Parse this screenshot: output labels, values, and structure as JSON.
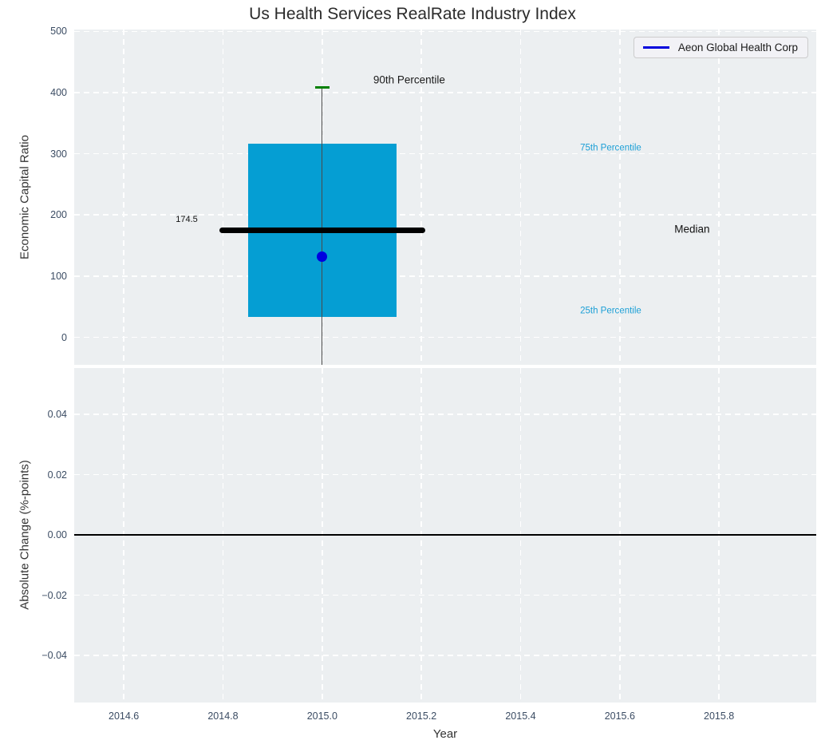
{
  "chart_data": {
    "type": "boxplot",
    "title": "Us Health Services RealRate Industry Index",
    "legend": {
      "label": "Aeon Global Health Corp",
      "line_color": "#0000dd",
      "position": "upper right"
    },
    "x_axis": {
      "label": "Year",
      "xlim": [
        2014.5,
        2015.996
      ],
      "tick_values": [
        2014.6,
        2014.8,
        2015.0,
        2015.2,
        2015.4,
        2015.6,
        2015.8
      ],
      "tick_labels": [
        "2014.6",
        "2014.8",
        "2015.0",
        "2015.2",
        "2015.4",
        "2015.6",
        "2015.8"
      ]
    },
    "top_axes": {
      "ylabel": "Economic Capital Ratio",
      "ylim": [
        -45,
        503
      ],
      "tick_values": [
        0,
        100,
        200,
        300,
        400,
        500
      ],
      "tick_labels": [
        "0",
        "100",
        "200",
        "300",
        "400",
        "500"
      ],
      "grid": true,
      "boxplot": {
        "x": 2015.0,
        "box_halfwidth": 0.15,
        "q1": 33,
        "median": 174.5,
        "median_label": "174.5",
        "median_line_halfwidth": 0.207,
        "q3": 317,
        "p90": 409,
        "cap_halfwidth": 0.015,
        "whisker_low": -60
      },
      "company_point": {
        "x": 2015.0,
        "y": 132
      },
      "annotations": [
        {
          "text": "90th Percentile",
          "x": 2015.103,
          "y": 420,
          "color": "#1a1a1a",
          "size": 13.5,
          "align": "left"
        },
        {
          "text": "75th Percentile",
          "x": 2015.52,
          "y": 308,
          "color": "#1b9fd6",
          "size": 11.5,
          "align": "left"
        },
        {
          "text": "Median",
          "x": 2015.71,
          "y": 175,
          "color": "#111111",
          "size": 13.5,
          "align": "left"
        },
        {
          "text": "25th Percentile",
          "x": 2015.52,
          "y": 43,
          "color": "#1b9fd6",
          "size": 11.5,
          "align": "left"
        },
        {
          "text": "174.5",
          "x": 2014.749,
          "y": 192,
          "color": "#111111",
          "size": 11,
          "align": "right"
        }
      ]
    },
    "bottom_axes": {
      "ylabel": "Absolute Change (%-points)",
      "ylim": [
        -0.0556,
        0.0554
      ],
      "tick_values": [
        0.04,
        0.02,
        0.0,
        -0.02,
        -0.04
      ],
      "tick_labels": [
        "0.04",
        "0.02",
        "0.00",
        "−0.02",
        "−0.04"
      ],
      "grid": true,
      "zero_line_y": 0.0
    },
    "colors": {
      "axes_background": "#eceff1",
      "grid": "#ffffff",
      "box_fill": "#059ed3",
      "median_line": "#000000",
      "whisker": "#4a4a4a",
      "cap_90th": "#008000",
      "company_point": "#0000e0",
      "zero_line": "#000000",
      "tick_label": "#3b4c63",
      "percentile_annotation": "#1b9fd6"
    }
  }
}
